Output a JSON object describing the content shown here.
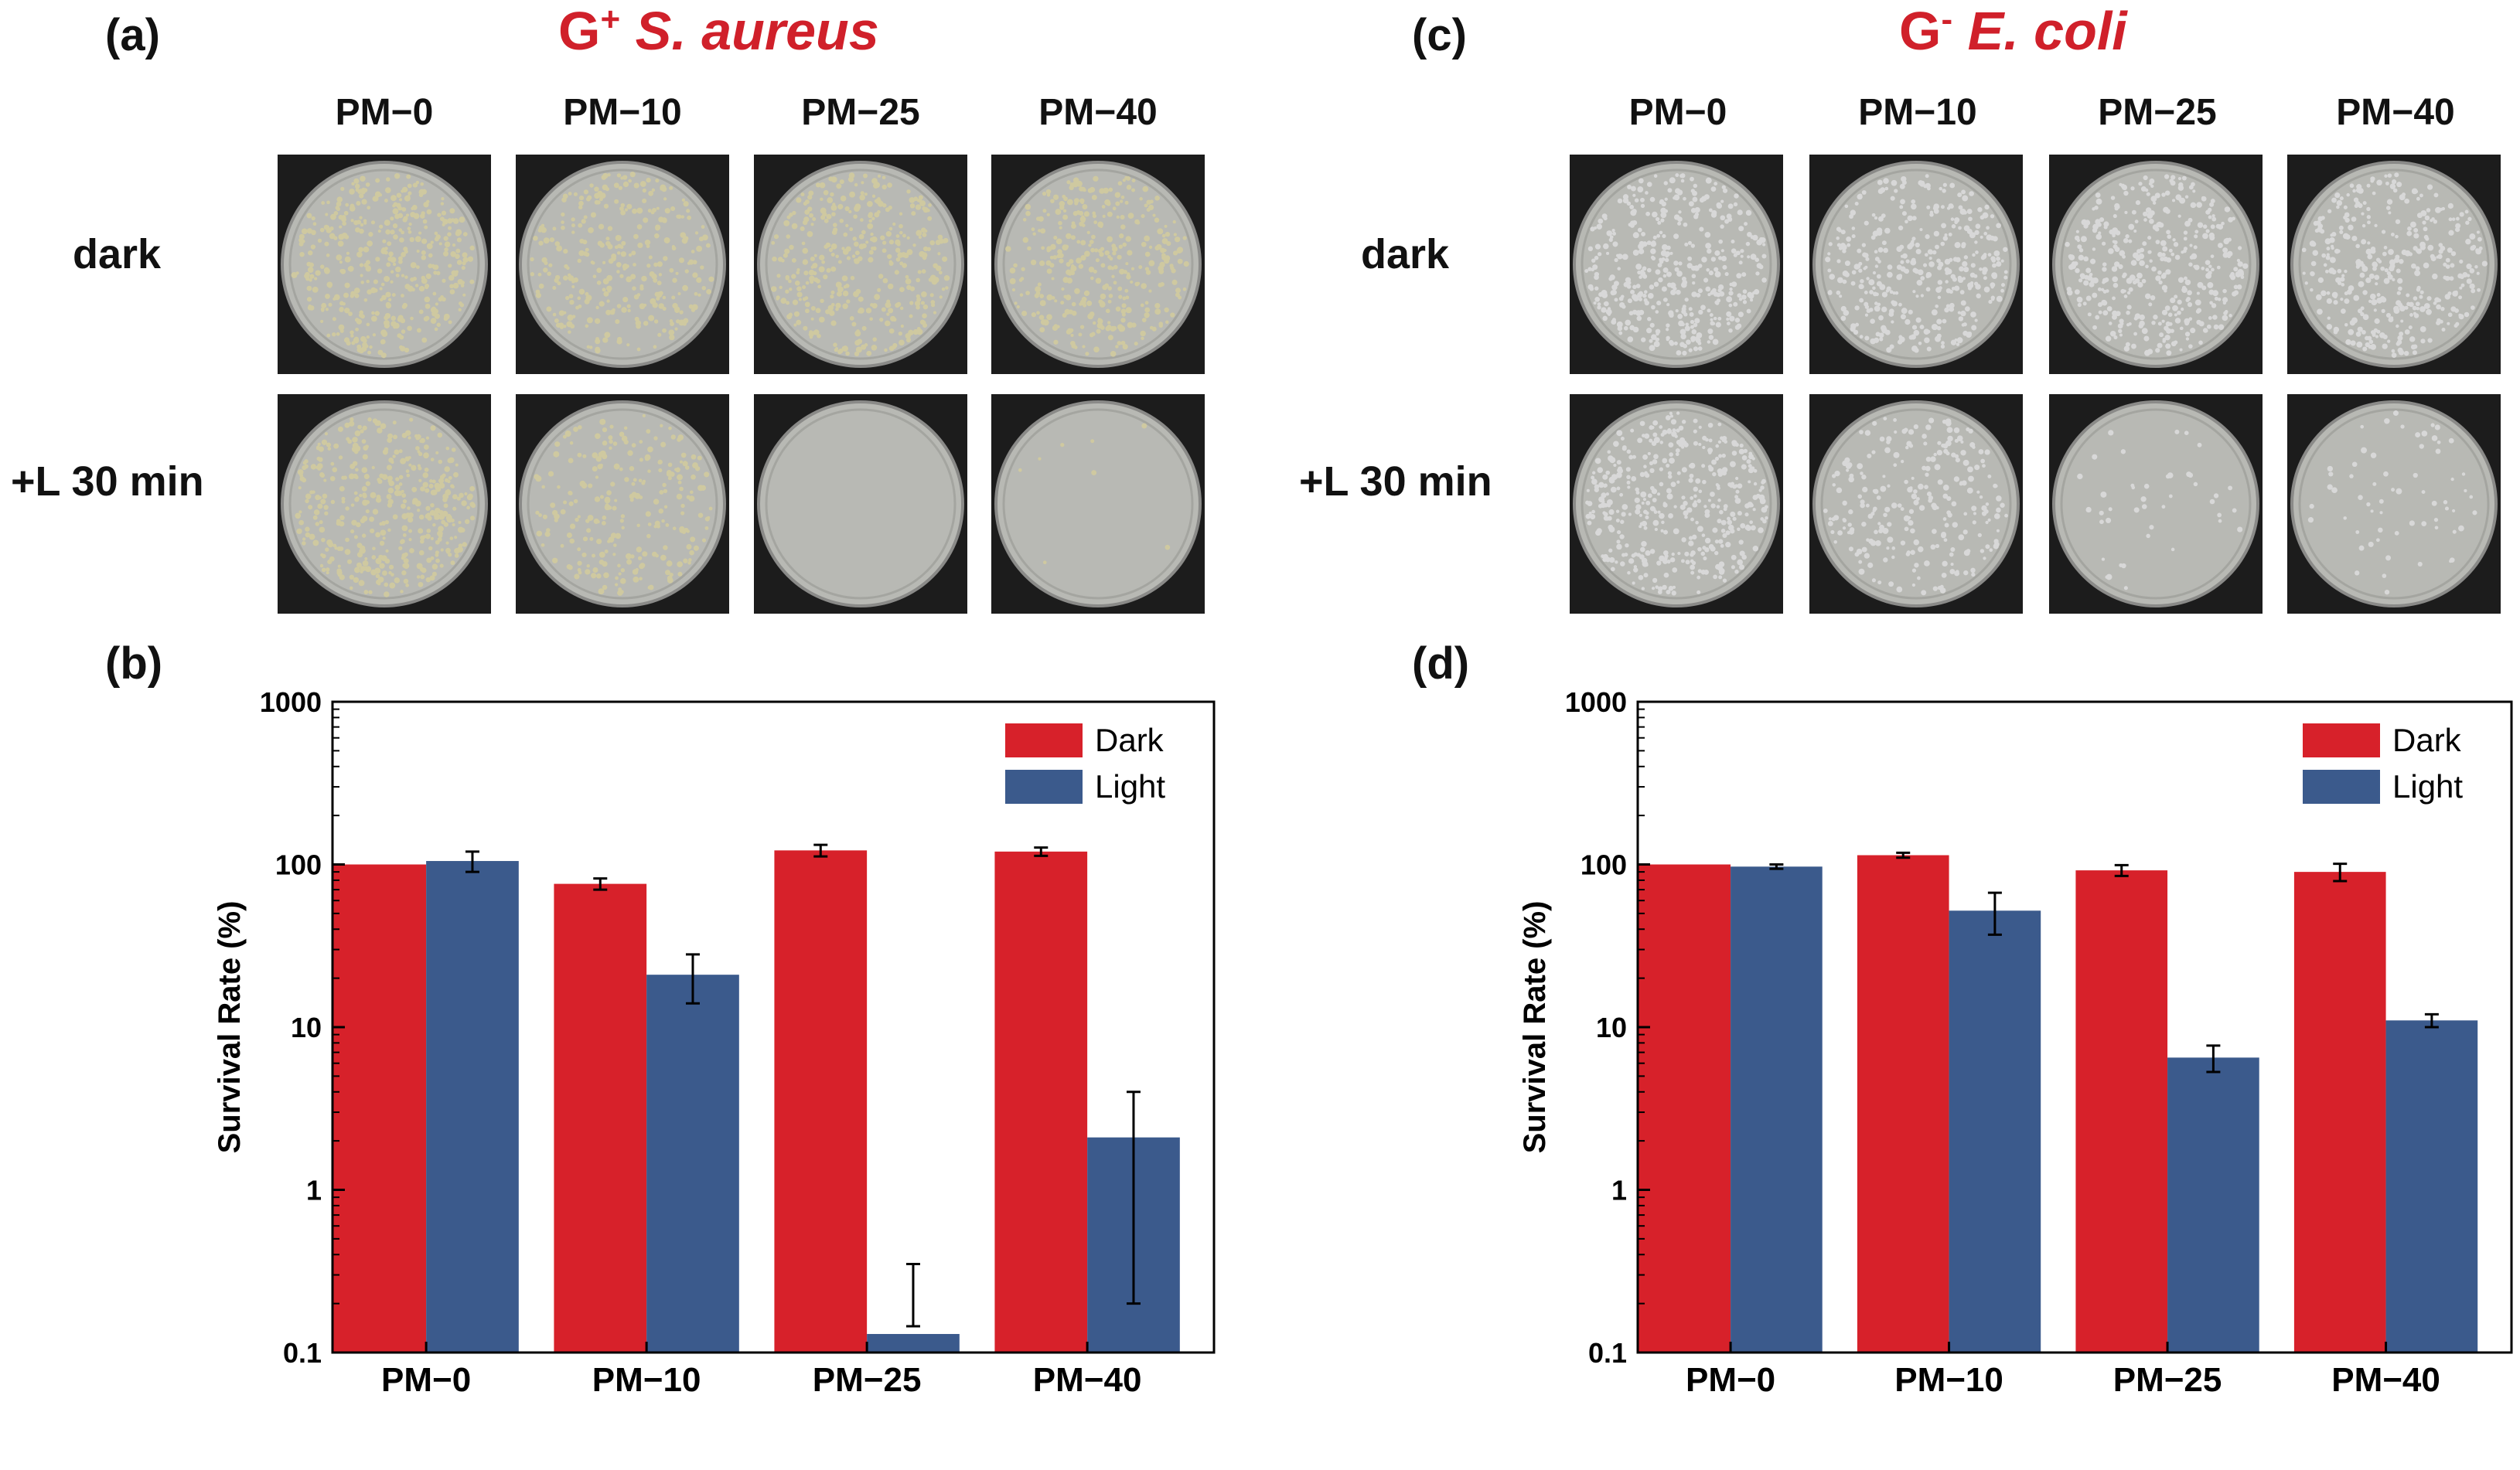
{
  "panel_a": {
    "letter": "(a)",
    "title_gram": "G",
    "title_sup": "+",
    "title_species": "S. aureus",
    "title_color": "#d0202a",
    "columns": [
      "PM−0",
      "PM−10",
      "PM−25",
      "PM−40"
    ],
    "rows": [
      "dark",
      "+L 30 min"
    ],
    "dish_colony_density": [
      [
        1.0,
        0.75,
        0.9,
        0.85
      ],
      [
        1.0,
        0.6,
        0.0,
        0.02
      ]
    ],
    "colony_color": "#cfc9a0"
  },
  "panel_c": {
    "letter": "(c)",
    "title_gram": "G",
    "title_sup": "-",
    "title_species": "E. coli",
    "title_color": "#d0202a",
    "columns": [
      "PM−0",
      "PM−10",
      "PM−25",
      "PM−40"
    ],
    "rows": [
      "dark",
      "+L 30 min"
    ],
    "dish_colony_density": [
      [
        1.0,
        0.9,
        0.95,
        0.9
      ],
      [
        1.0,
        0.6,
        0.1,
        0.15
      ]
    ],
    "colony_color": "#d8d8d8"
  },
  "panel_b": {
    "letter": "(b)"
  },
  "panel_d": {
    "letter": "(d)"
  },
  "chart_data": [
    {
      "type": "bar",
      "panel": "(b)",
      "categories": [
        "PM−0",
        "PM−10",
        "PM−25",
        "PM−40"
      ],
      "ylabel": "Survival Rate (%)",
      "yscale": "log",
      "ylim": [
        0.1,
        1000
      ],
      "yticks": [
        "0.1",
        "1",
        "10",
        "100",
        "1000"
      ],
      "legend": "top-right",
      "series": [
        {
          "name": "Dark",
          "color": "#d7212a",
          "values": [
            100,
            76,
            122,
            120
          ],
          "errors": [
            0,
            6,
            10,
            7
          ]
        },
        {
          "name": "Light",
          "color": "#3b5a8c",
          "values": [
            105,
            21,
            0.13,
            2.1
          ],
          "errors": [
            15,
            7,
            0.22,
            1.9
          ]
        }
      ]
    },
    {
      "type": "bar",
      "panel": "(d)",
      "categories": [
        "PM−0",
        "PM−10",
        "PM−25",
        "PM−40"
      ],
      "ylabel": "Survival Rate (%)",
      "yscale": "log",
      "ylim": [
        0.1,
        1000
      ],
      "yticks": [
        "0.1",
        "1",
        "10",
        "100",
        "1000"
      ],
      "legend": "top-right",
      "series": [
        {
          "name": "Dark",
          "color": "#d7212a",
          "values": [
            100,
            114,
            92,
            90
          ],
          "errors": [
            0,
            4,
            7,
            11
          ]
        },
        {
          "name": "Light",
          "color": "#3b5a8c",
          "values": [
            97,
            52,
            6.5,
            11
          ],
          "errors": [
            3,
            15,
            1.2,
            1
          ]
        }
      ]
    }
  ]
}
